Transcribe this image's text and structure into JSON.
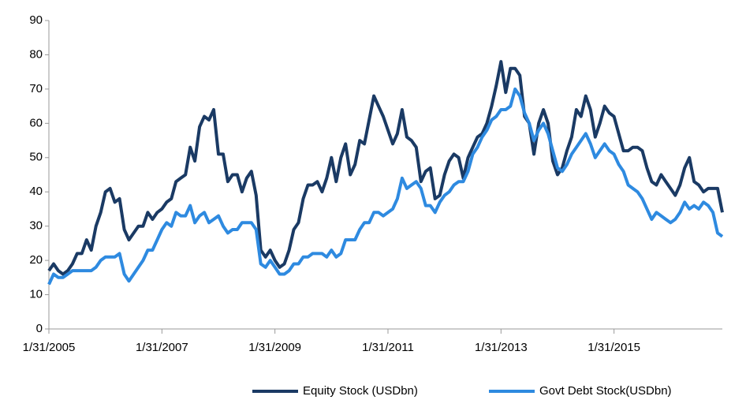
{
  "chart_data": {
    "type": "line",
    "categories": [
      "1/31/2005",
      null,
      null,
      null,
      null,
      null,
      null,
      null,
      null,
      null,
      null,
      null,
      null,
      null,
      null,
      null,
      null,
      null,
      null,
      null,
      null,
      null,
      null,
      null,
      "1/31/2007",
      null,
      null,
      null,
      null,
      null,
      null,
      null,
      null,
      null,
      null,
      null,
      null,
      null,
      null,
      null,
      null,
      null,
      null,
      null,
      null,
      null,
      null,
      null,
      "1/31/2009",
      null,
      null,
      null,
      null,
      null,
      null,
      null,
      null,
      null,
      null,
      null,
      null,
      null,
      null,
      null,
      null,
      null,
      null,
      null,
      null,
      null,
      null,
      null,
      "1/31/2011",
      null,
      null,
      null,
      null,
      null,
      null,
      null,
      null,
      null,
      null,
      null,
      null,
      null,
      null,
      null,
      null,
      null,
      null,
      null,
      null,
      null,
      null,
      null,
      "1/31/2013",
      null,
      null,
      null,
      null,
      null,
      null,
      null,
      null,
      null,
      null,
      null,
      null,
      null,
      null,
      null,
      null,
      null,
      null,
      null,
      null,
      null,
      null,
      null,
      "1/31/2015",
      null,
      null,
      null,
      null,
      null,
      null,
      null,
      null,
      null,
      null,
      null,
      null,
      null,
      null,
      null,
      null,
      null,
      null,
      null,
      null,
      null,
      null,
      null
    ],
    "series": [
      {
        "name": "Equity Stock (USDbn)",
        "color": "#1a3a64",
        "values": [
          17,
          19,
          17,
          16,
          17,
          19,
          22,
          22,
          26,
          23,
          30,
          34,
          40,
          41,
          37,
          38,
          29,
          26,
          28,
          30,
          30,
          34,
          32,
          34,
          35,
          37,
          38,
          43,
          44,
          45,
          53,
          49,
          59,
          62,
          61,
          64,
          51,
          51,
          43,
          45,
          45,
          40,
          44,
          46,
          39,
          23,
          21,
          23,
          20,
          18,
          19,
          23,
          29,
          31,
          38,
          42,
          42,
          43,
          40,
          44,
          50,
          43,
          50,
          54,
          45,
          48,
          55,
          54,
          61,
          68,
          65,
          62,
          58,
          54,
          57,
          64,
          56,
          55,
          53,
          43,
          46,
          47,
          38,
          39,
          45,
          49,
          51,
          50,
          44,
          50,
          53,
          56,
          57,
          60,
          65,
          71,
          78,
          69,
          76,
          76,
          74,
          62,
          60,
          51,
          60,
          64,
          60,
          49,
          45,
          47,
          52,
          56,
          64,
          62,
          68,
          64,
          56,
          60,
          65,
          63,
          62,
          57,
          52,
          52,
          53,
          53,
          52,
          47,
          43,
          42,
          45,
          43,
          41,
          39,
          42,
          47,
          50,
          43,
          42,
          40,
          41,
          41,
          41,
          34
        ]
      },
      {
        "name": "Govt Debt Stock(USDbn)",
        "color": "#2e8ae0",
        "values": [
          13,
          16,
          15,
          15,
          16,
          17,
          17,
          17,
          17,
          17,
          18,
          20,
          21,
          21,
          21,
          22,
          16,
          14,
          16,
          18,
          20,
          23,
          23,
          26,
          29,
          31,
          30,
          34,
          33,
          33,
          36,
          31,
          33,
          34,
          31,
          32,
          33,
          30,
          28,
          29,
          29,
          31,
          31,
          31,
          29,
          19,
          18,
          20,
          18,
          16,
          16,
          17,
          19,
          19,
          21,
          21,
          22,
          22,
          22,
          21,
          23,
          21,
          22,
          26,
          26,
          26,
          29,
          31,
          31,
          34,
          34,
          33,
          34,
          35,
          38,
          44,
          41,
          42,
          43,
          41,
          36,
          36,
          34,
          37,
          39,
          40,
          42,
          43,
          43,
          46,
          51,
          53,
          56,
          58,
          61,
          62,
          64,
          64,
          65,
          70,
          68,
          63,
          60,
          55,
          58,
          60,
          57,
          52,
          47,
          46,
          48,
          51,
          53,
          55,
          57,
          54,
          50,
          52,
          54,
          52,
          51,
          48,
          46,
          42,
          41,
          40,
          38,
          35,
          32,
          34,
          33,
          32,
          31,
          32,
          34,
          37,
          35,
          36,
          35,
          37,
          36,
          34,
          28,
          27
        ]
      }
    ],
    "ylim": [
      0,
      90
    ],
    "yticks": [
      0,
      10,
      20,
      30,
      40,
      50,
      60,
      70,
      80,
      90
    ],
    "grid": false
  }
}
